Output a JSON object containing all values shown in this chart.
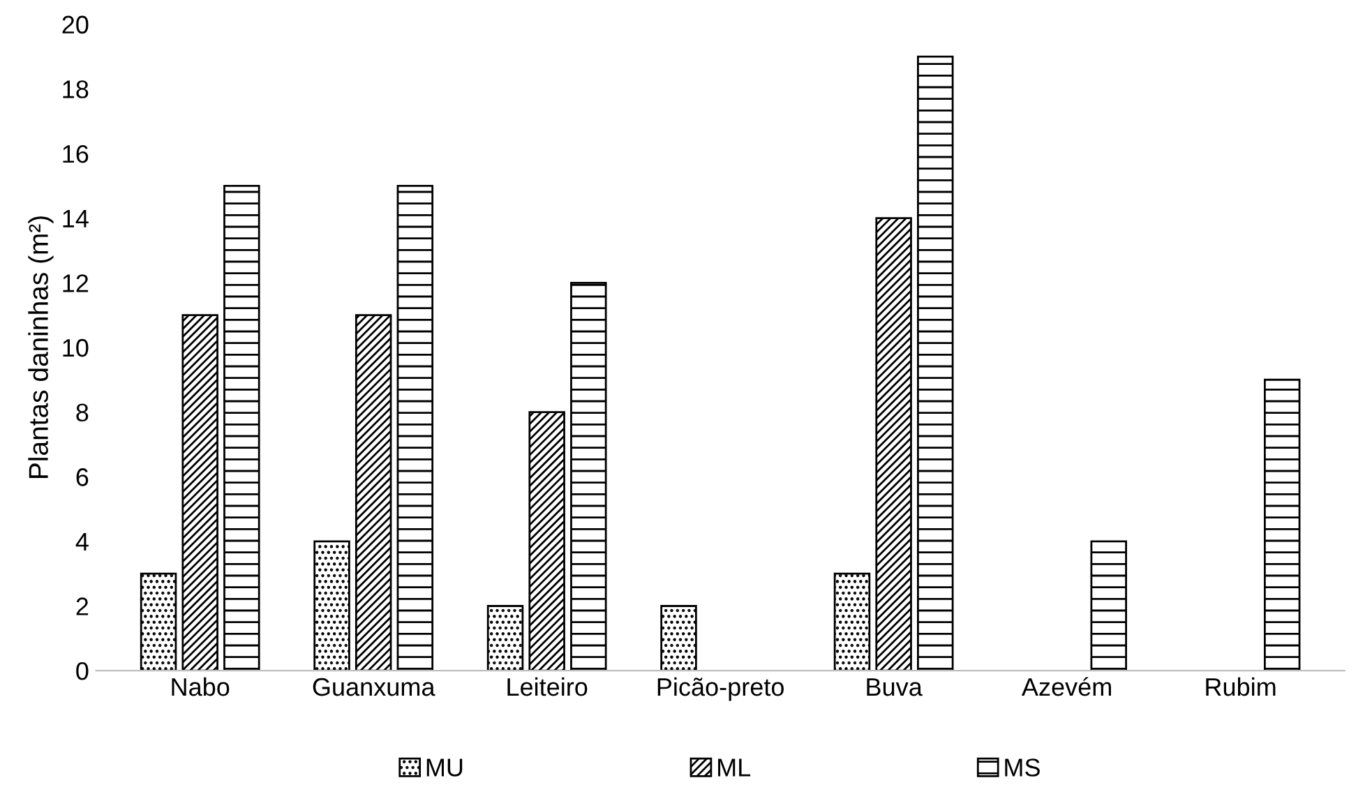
{
  "chart_data": {
    "type": "bar",
    "ylabel": "Plantas daninhas (m²)",
    "categories": [
      "Nabo",
      "Guanxuma",
      "Leiteiro",
      "Picão-preto",
      "Buva",
      "Azevém",
      "Rubim"
    ],
    "series": [
      {
        "name": "MU",
        "color": "#000000",
        "values": [
          3,
          4,
          2,
          2,
          3,
          null,
          null
        ]
      },
      {
        "name": "ML",
        "color": "#000000",
        "values": [
          11,
          11,
          8,
          null,
          14,
          null,
          null
        ]
      },
      {
        "name": "MS",
        "color": "#000000",
        "values": [
          15,
          15,
          12,
          null,
          19,
          4,
          9
        ]
      }
    ],
    "ylim": [
      0,
      20
    ],
    "yticks": [
      0,
      2,
      4,
      6,
      8,
      10,
      12,
      14,
      16,
      18,
      20
    ],
    "grid": false,
    "legend": "bottom"
  }
}
